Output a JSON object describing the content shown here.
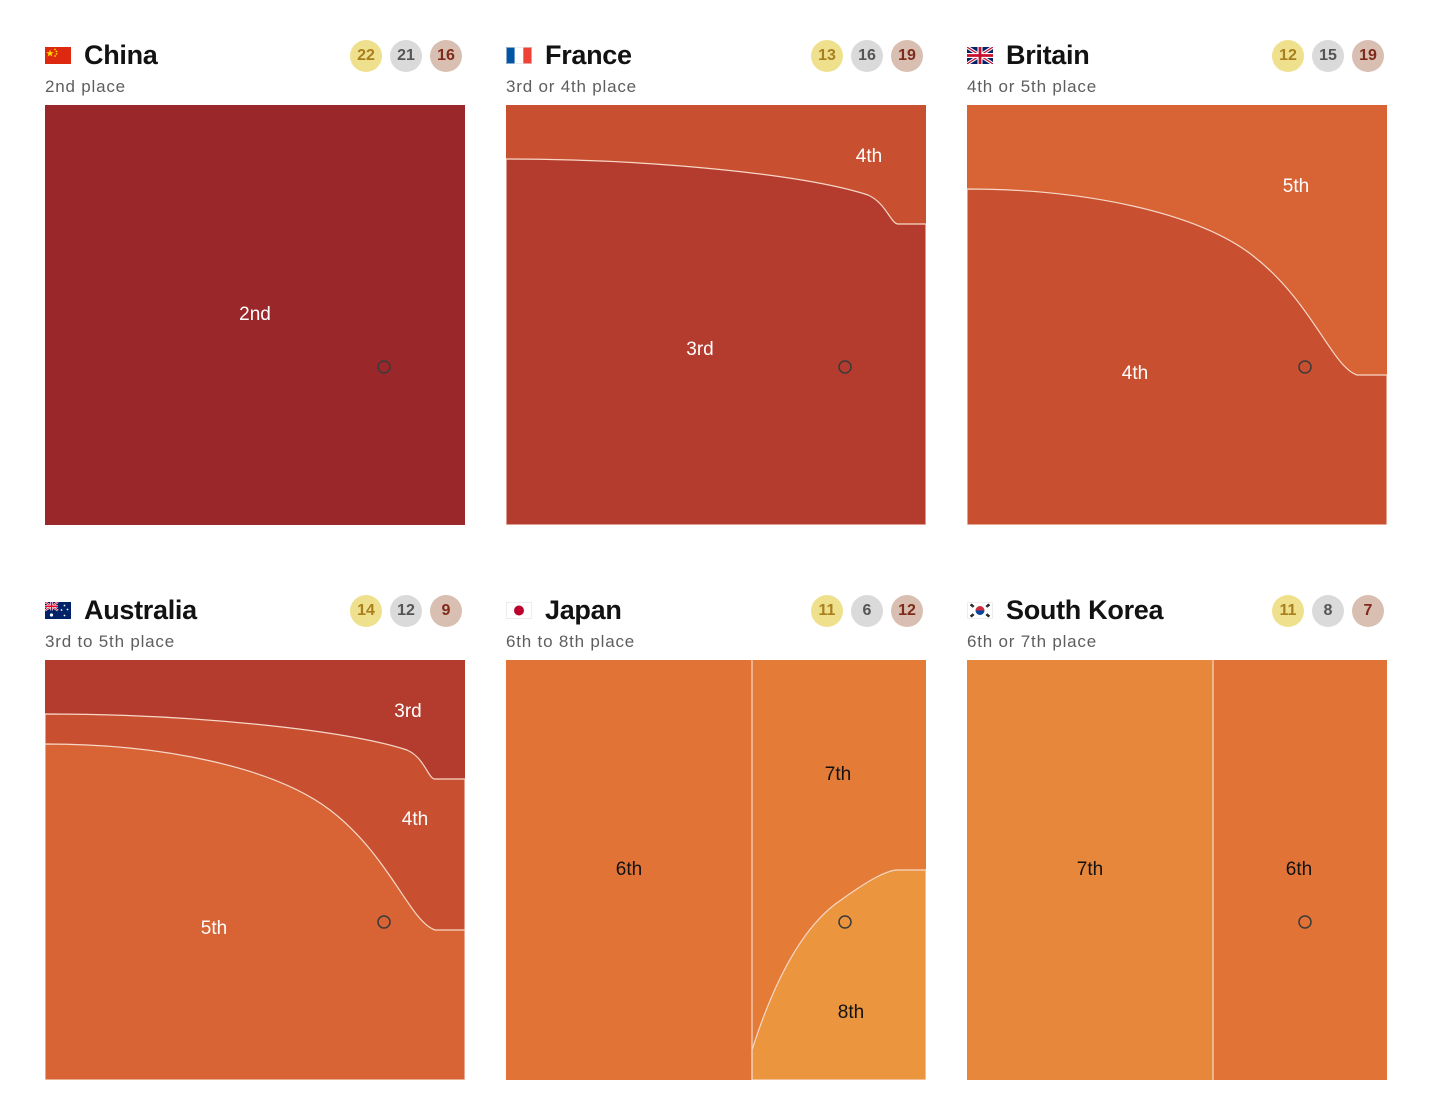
{
  "chart_data": [
    {
      "type": "area",
      "country": "China",
      "subtitle": "2nd place",
      "medals": {
        "gold": 22,
        "silver": 21,
        "bronze": 16
      },
      "flag_icon": "china-flag-icon",
      "regions": [
        {
          "label": "2nd",
          "color": "#9a282b",
          "text_color": "#ffffff"
        }
      ]
    },
    {
      "type": "area",
      "country": "France",
      "subtitle": "3rd or 4th place",
      "medals": {
        "gold": 13,
        "silver": 16,
        "bronze": 19
      },
      "flag_icon": "france-flag-icon",
      "regions": [
        {
          "label": "3rd",
          "color": "#b43c2e",
          "text_color": "#ffffff"
        },
        {
          "label": "4th",
          "color": "#c85031",
          "text_color": "#ffffff"
        }
      ]
    },
    {
      "type": "area",
      "country": "Britain",
      "subtitle": "4th or 5th place",
      "medals": {
        "gold": 12,
        "silver": 15,
        "bronze": 19
      },
      "flag_icon": "britain-flag-icon",
      "regions": [
        {
          "label": "4th",
          "color": "#c85031",
          "text_color": "#ffffff"
        },
        {
          "label": "5th",
          "color": "#d86335",
          "text_color": "#ffffff"
        }
      ]
    },
    {
      "type": "area",
      "country": "Australia",
      "subtitle": "3rd to 5th place",
      "medals": {
        "gold": 14,
        "silver": 12,
        "bronze": 9
      },
      "flag_icon": "australia-flag-icon",
      "regions": [
        {
          "label": "3rd",
          "color": "#b43c2e",
          "text_color": "#ffffff"
        },
        {
          "label": "4th",
          "color": "#c85031",
          "text_color": "#ffffff"
        },
        {
          "label": "5th",
          "color": "#d86335",
          "text_color": "#ffffff"
        }
      ]
    },
    {
      "type": "area",
      "country": "Japan",
      "subtitle": "6th to 8th place",
      "medals": {
        "gold": 11,
        "silver": 6,
        "bronze": 12
      },
      "flag_icon": "japan-flag-icon",
      "regions": [
        {
          "label": "6th",
          "color": "#e17336",
          "text_color": "#121212"
        },
        {
          "label": "7th",
          "color": "#e47c38",
          "text_color": "#121212"
        },
        {
          "label": "8th",
          "color": "#eb953e",
          "text_color": "#121212"
        }
      ]
    },
    {
      "type": "area",
      "country": "South Korea",
      "subtitle": "6th or 7th place",
      "medals": {
        "gold": 11,
        "silver": 8,
        "bronze": 7
      },
      "flag_icon": "south-korea-flag-icon",
      "regions": [
        {
          "label": "7th",
          "color": "#e7873b",
          "text_color": "#121212"
        },
        {
          "label": "6th",
          "color": "#e17336",
          "text_color": "#121212"
        }
      ]
    }
  ]
}
